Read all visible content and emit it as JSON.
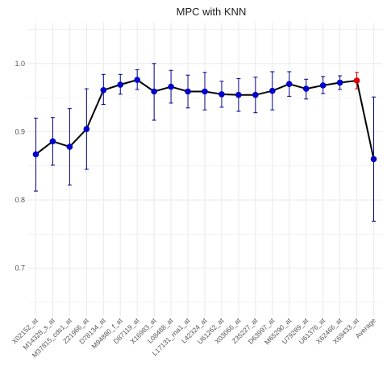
{
  "chart_data": {
    "type": "line",
    "title": "MPC with KNN",
    "xlabel": "",
    "ylabel": "",
    "ylim": [
      0.63,
      1.06
    ],
    "y_ticks": [
      0.7,
      0.8,
      0.9,
      1.0
    ],
    "y_tick_labels": [
      "0.7",
      "0.8",
      "0.9",
      "1.0"
    ],
    "grid": true,
    "legend": "none",
    "categories": [
      "X02152_at",
      "M14328_s_at",
      "M37815_cds1_at",
      "Z21966_at",
      "D78134_at",
      "M94880_f_at",
      "D87119_at",
      "X16983_at",
      "L08488_at",
      "L17131_rna1_at",
      "L42324_at",
      "U61262_at",
      "X03066_at",
      "Z35227_at",
      "D63997_at",
      "M65290_at",
      "U79289_at",
      "U61376_at",
      "X62466_at",
      "X69433_at",
      "Average"
    ],
    "values": [
      0.867,
      0.886,
      0.878,
      0.904,
      0.961,
      0.969,
      0.976,
      0.959,
      0.966,
      0.959,
      0.959,
      0.955,
      0.954,
      0.954,
      0.96,
      0.97,
      0.963,
      0.968,
      0.972,
      0.975,
      0.86
    ],
    "error_low": [
      0.813,
      0.851,
      0.822,
      0.845,
      0.94,
      0.955,
      0.962,
      0.917,
      0.942,
      0.935,
      0.932,
      0.936,
      0.93,
      0.928,
      0.932,
      0.952,
      0.948,
      0.956,
      0.962,
      0.963,
      0.769
    ],
    "error_high": [
      0.92,
      0.921,
      0.934,
      0.963,
      0.984,
      0.984,
      0.991,
      1.0,
      0.99,
      0.983,
      0.987,
      0.974,
      0.978,
      0.98,
      0.988,
      0.988,
      0.977,
      0.981,
      0.982,
      0.987,
      0.951
    ],
    "highlight_index": 19,
    "colors": {
      "line": "#000000",
      "point": "#0000cc",
      "highlight": "#dd0000",
      "errorbar": "#00008b",
      "grid": "#ebebeb"
    }
  }
}
